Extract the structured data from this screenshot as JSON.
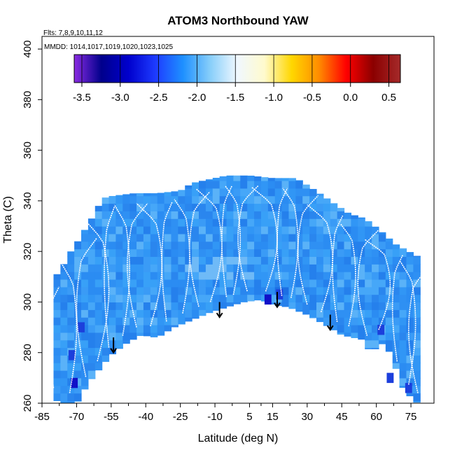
{
  "chart_data": {
    "type": "heatmap",
    "title": "ATOM3 Northbound YAW",
    "subtitle_flights": "Flts: 7,8,9,10,11,12",
    "subtitle_dates": "MMDD: 1014,1017,1019,1020,1023,1025",
    "xlabel": "Latitude (deg N)",
    "ylabel": "Theta (C)",
    "xlim": [
      -85,
      85
    ],
    "ylim": [
      260,
      405
    ],
    "x_ticks": [
      -85,
      -70,
      -55,
      -40,
      -25,
      -10,
      5,
      15,
      30,
      45,
      60,
      75
    ],
    "x_tick_labels": [
      "-85",
      "-70",
      "-55",
      "-40",
      "-25",
      "-10",
      "5",
      "15",
      "30",
      "45",
      "60",
      "75"
    ],
    "y_ticks": [
      260,
      280,
      300,
      320,
      340,
      360,
      380,
      400
    ],
    "y_tick_labels": [
      "260",
      "280",
      "300",
      "320",
      "340",
      "360",
      "380",
      "400"
    ],
    "colorbar": {
      "min": -3.6,
      "max": 0.65,
      "ticks": [
        -3.5,
        -3.0,
        -2.5,
        -2.0,
        -1.5,
        -1.0,
        -0.5,
        0.0,
        0.5
      ],
      "tick_labels": [
        "-3.5",
        "-3.0",
        "-2.5",
        "-2.0",
        "-1.5",
        "-1.0",
        "-0.5",
        "0.0",
        "0.5"
      ],
      "colors": [
        "#8a2be2",
        "#00008b",
        "#0000cd",
        "#1e3cff",
        "#1e90ff",
        "#87cefa",
        "#f0f8ff",
        "#fffacd",
        "#ffd700",
        "#ff8c00",
        "#ff0000",
        "#8b0000",
        "#a52a2a"
      ]
    },
    "envelope_top": [
      [
        -80,
        310
      ],
      [
        -77,
        312
      ],
      [
        -74,
        318
      ],
      [
        -71,
        322
      ],
      [
        -68,
        326
      ],
      [
        -65,
        331
      ],
      [
        -62,
        335
      ],
      [
        -59,
        341
      ],
      [
        -54,
        342
      ],
      [
        -45,
        343
      ],
      [
        -35,
        343
      ],
      [
        -25,
        344
      ],
      [
        -20,
        347
      ],
      [
        -10,
        349
      ],
      [
        -5,
        350
      ],
      [
        5,
        350
      ],
      [
        15,
        349
      ],
      [
        25,
        349
      ],
      [
        32,
        345
      ],
      [
        40,
        340
      ],
      [
        48,
        335
      ],
      [
        55,
        333
      ],
      [
        62,
        328
      ],
      [
        68,
        323
      ],
      [
        74,
        320
      ],
      [
        78,
        318
      ]
    ],
    "envelope_bottom": [
      [
        -80,
        262
      ],
      [
        -77,
        260
      ],
      [
        -70,
        260
      ],
      [
        -65,
        268
      ],
      [
        -58,
        276
      ],
      [
        -54,
        280
      ],
      [
        -48,
        284
      ],
      [
        -42,
        287
      ],
      [
        -35,
        286
      ],
      [
        -28,
        290
      ],
      [
        -20,
        293
      ],
      [
        -12,
        296
      ],
      [
        -5,
        298
      ],
      [
        2,
        300
      ],
      [
        10,
        301
      ],
      [
        15,
        299
      ],
      [
        22,
        298
      ],
      [
        30,
        295
      ],
      [
        38,
        291
      ],
      [
        45,
        287
      ],
      [
        50,
        286
      ],
      [
        55,
        285
      ],
      [
        58,
        278
      ],
      [
        61,
        285
      ],
      [
        66,
        280
      ],
      [
        72,
        265
      ],
      [
        78,
        260
      ]
    ],
    "low_patches": [
      {
        "lat": -71,
        "theta": 268,
        "value": -3.1
      },
      {
        "lat": -72,
        "theta": 279,
        "value": -2.9
      },
      {
        "lat": -68,
        "theta": 290,
        "value": -2.8
      },
      {
        "lat": 13,
        "theta": 301,
        "value": -3.2
      },
      {
        "lat": 18,
        "theta": 303,
        "value": -2.9
      },
      {
        "lat": 62,
        "theta": 289,
        "value": -2.9
      },
      {
        "lat": 66,
        "theta": 270,
        "value": -2.8
      },
      {
        "lat": 74,
        "theta": 266,
        "value": -2.9
      }
    ],
    "profiles": [
      -80,
      -73,
      -66,
      -61,
      -56,
      -50,
      -44,
      -38,
      -31,
      -24,
      -17,
      -12,
      -5,
      -2,
      4,
      12,
      19,
      23,
      30,
      36,
      43,
      48,
      56,
      61,
      69,
      74,
      78
    ],
    "arrows": [
      {
        "lat": -54,
        "theta_top": 286,
        "theta_bottom": 280
      },
      {
        "lat": -8,
        "theta_top": 300,
        "theta_bottom": 294
      },
      {
        "lat": 17,
        "theta_top": 304,
        "theta_bottom": 298
      },
      {
        "lat": 40,
        "theta_top": 295,
        "theta_bottom": 289
      }
    ]
  }
}
